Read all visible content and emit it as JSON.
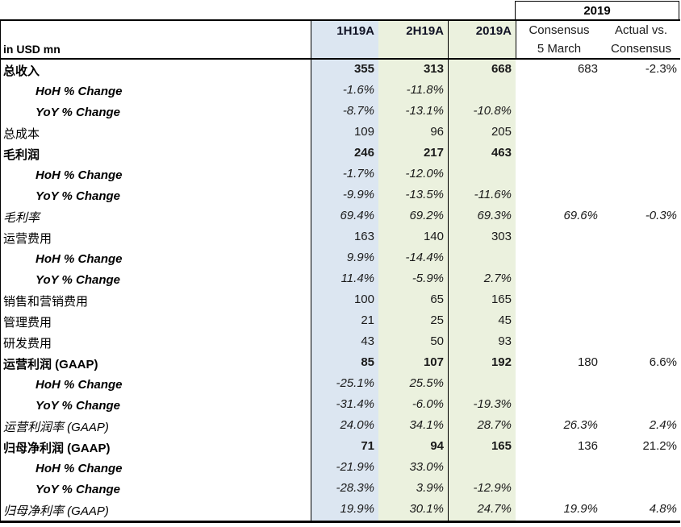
{
  "meta": {
    "units_label": "in USD mn"
  },
  "header": {
    "group_label": "2019",
    "columns": [
      "1H19A",
      "2H19A",
      "2019A"
    ],
    "consensus_col": {
      "line1": "Consensus",
      "line2": "5 March"
    },
    "actual_vs_col": {
      "line1": "Actual vs.",
      "line2": "Consensus"
    }
  },
  "colors": {
    "half1_fill": "#dce6f1",
    "half2_fill": "#ebf1de",
    "fullyear_fill": "#ebf1de",
    "border": "#000000"
  },
  "rows": [
    {
      "label": "总收入",
      "style": "bold",
      "values": [
        "355",
        "313",
        "668",
        "683",
        "-2.3%"
      ]
    },
    {
      "label": "HoH % Change",
      "style": "sub",
      "values": [
        "-1.6%",
        "-11.8%",
        "",
        "",
        ""
      ]
    },
    {
      "label": "YoY % Change",
      "style": "sub",
      "values": [
        "-8.7%",
        "-13.1%",
        "-10.8%",
        "",
        ""
      ]
    },
    {
      "label": "总成本",
      "style": "plain",
      "values": [
        "109",
        "96",
        "205",
        "",
        ""
      ]
    },
    {
      "label": "毛利润",
      "style": "bold",
      "values": [
        "246",
        "217",
        "463",
        "",
        ""
      ]
    },
    {
      "label": "HoH % Change",
      "style": "sub",
      "values": [
        "-1.7%",
        "-12.0%",
        "",
        "",
        ""
      ]
    },
    {
      "label": "YoY % Change",
      "style": "sub",
      "values": [
        "-9.9%",
        "-13.5%",
        "-11.6%",
        "",
        ""
      ]
    },
    {
      "label": "毛利率",
      "style": "ratio",
      "values": [
        "69.4%",
        "69.2%",
        "69.3%",
        "69.6%",
        "-0.3%"
      ]
    },
    {
      "label": "运营费用",
      "style": "plain",
      "values": [
        "163",
        "140",
        "303",
        "",
        ""
      ]
    },
    {
      "label": "HoH % Change",
      "style": "sub",
      "values": [
        "9.9%",
        "-14.4%",
        "",
        "",
        ""
      ]
    },
    {
      "label": "YoY % Change",
      "style": "sub",
      "values": [
        "11.4%",
        "-5.9%",
        "2.7%",
        "",
        ""
      ]
    },
    {
      "label": "销售和营销费用",
      "style": "plain",
      "values": [
        "100",
        "65",
        "165",
        "",
        ""
      ]
    },
    {
      "label": "管理费用",
      "style": "plain",
      "values": [
        "21",
        "25",
        "45",
        "",
        ""
      ]
    },
    {
      "label": "研发费用",
      "style": "plain",
      "values": [
        "43",
        "50",
        "93",
        "",
        ""
      ]
    },
    {
      "label": "运营利润 (GAAP)",
      "style": "bold",
      "values": [
        "85",
        "107",
        "192",
        "180",
        "6.6%"
      ]
    },
    {
      "label": "HoH % Change",
      "style": "sub",
      "values": [
        "-25.1%",
        "25.5%",
        "",
        "",
        ""
      ]
    },
    {
      "label": "YoY % Change",
      "style": "sub",
      "values": [
        "-31.4%",
        "-6.0%",
        "-19.3%",
        "",
        ""
      ]
    },
    {
      "label": "运营利润率 (GAAP)",
      "style": "ratio",
      "values": [
        "24.0%",
        "34.1%",
        "28.7%",
        "26.3%",
        "2.4%"
      ]
    },
    {
      "label": "归母净利润 (GAAP)",
      "style": "bold",
      "values": [
        "71",
        "94",
        "165",
        "136",
        "21.2%"
      ]
    },
    {
      "label": "HoH % Change",
      "style": "sub",
      "values": [
        "-21.9%",
        "33.0%",
        "",
        "",
        ""
      ]
    },
    {
      "label": "YoY % Change",
      "style": "sub",
      "values": [
        "-28.3%",
        "3.9%",
        "-12.9%",
        "",
        ""
      ]
    },
    {
      "label": "归母净利率 (GAAP)",
      "style": "ratio",
      "values": [
        "19.9%",
        "30.1%",
        "24.7%",
        "19.9%",
        "4.8%"
      ]
    }
  ]
}
